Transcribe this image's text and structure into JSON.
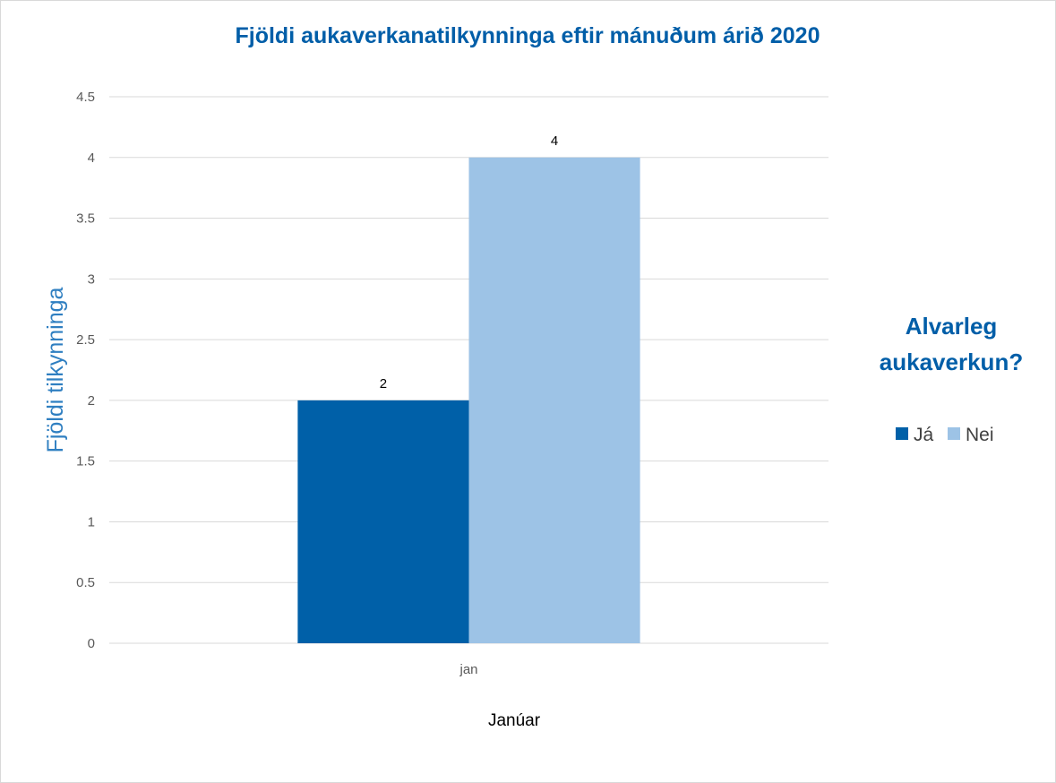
{
  "chart_data": {
    "type": "bar",
    "title": "Fjöldi aukaverkanatilkynninga eftir mánuðum árið 2020",
    "xlabel": "Janúar",
    "ylabel": "Fjöldi tilkynninga",
    "categories": [
      "jan"
    ],
    "series": [
      {
        "name": "Já",
        "values": [
          2
        ],
        "color": "#0060a8"
      },
      {
        "name": "Nei",
        "values": [
          4
        ],
        "color": "#9dc3e6"
      }
    ],
    "ylim": [
      0,
      4.5
    ],
    "y_ticks": [
      "0",
      "0.5",
      "1",
      "1.5",
      "2",
      "2.5",
      "3",
      "3.5",
      "4",
      "4.5"
    ],
    "data_labels": true,
    "grid": true,
    "legend": {
      "title_lines": [
        "Alvarleg",
        "aukaverkun?"
      ],
      "placement": "right"
    },
    "colors": {
      "title": "#005ea8",
      "axis_title": "#2f7fc1",
      "grid": "#d9d9d9"
    }
  }
}
